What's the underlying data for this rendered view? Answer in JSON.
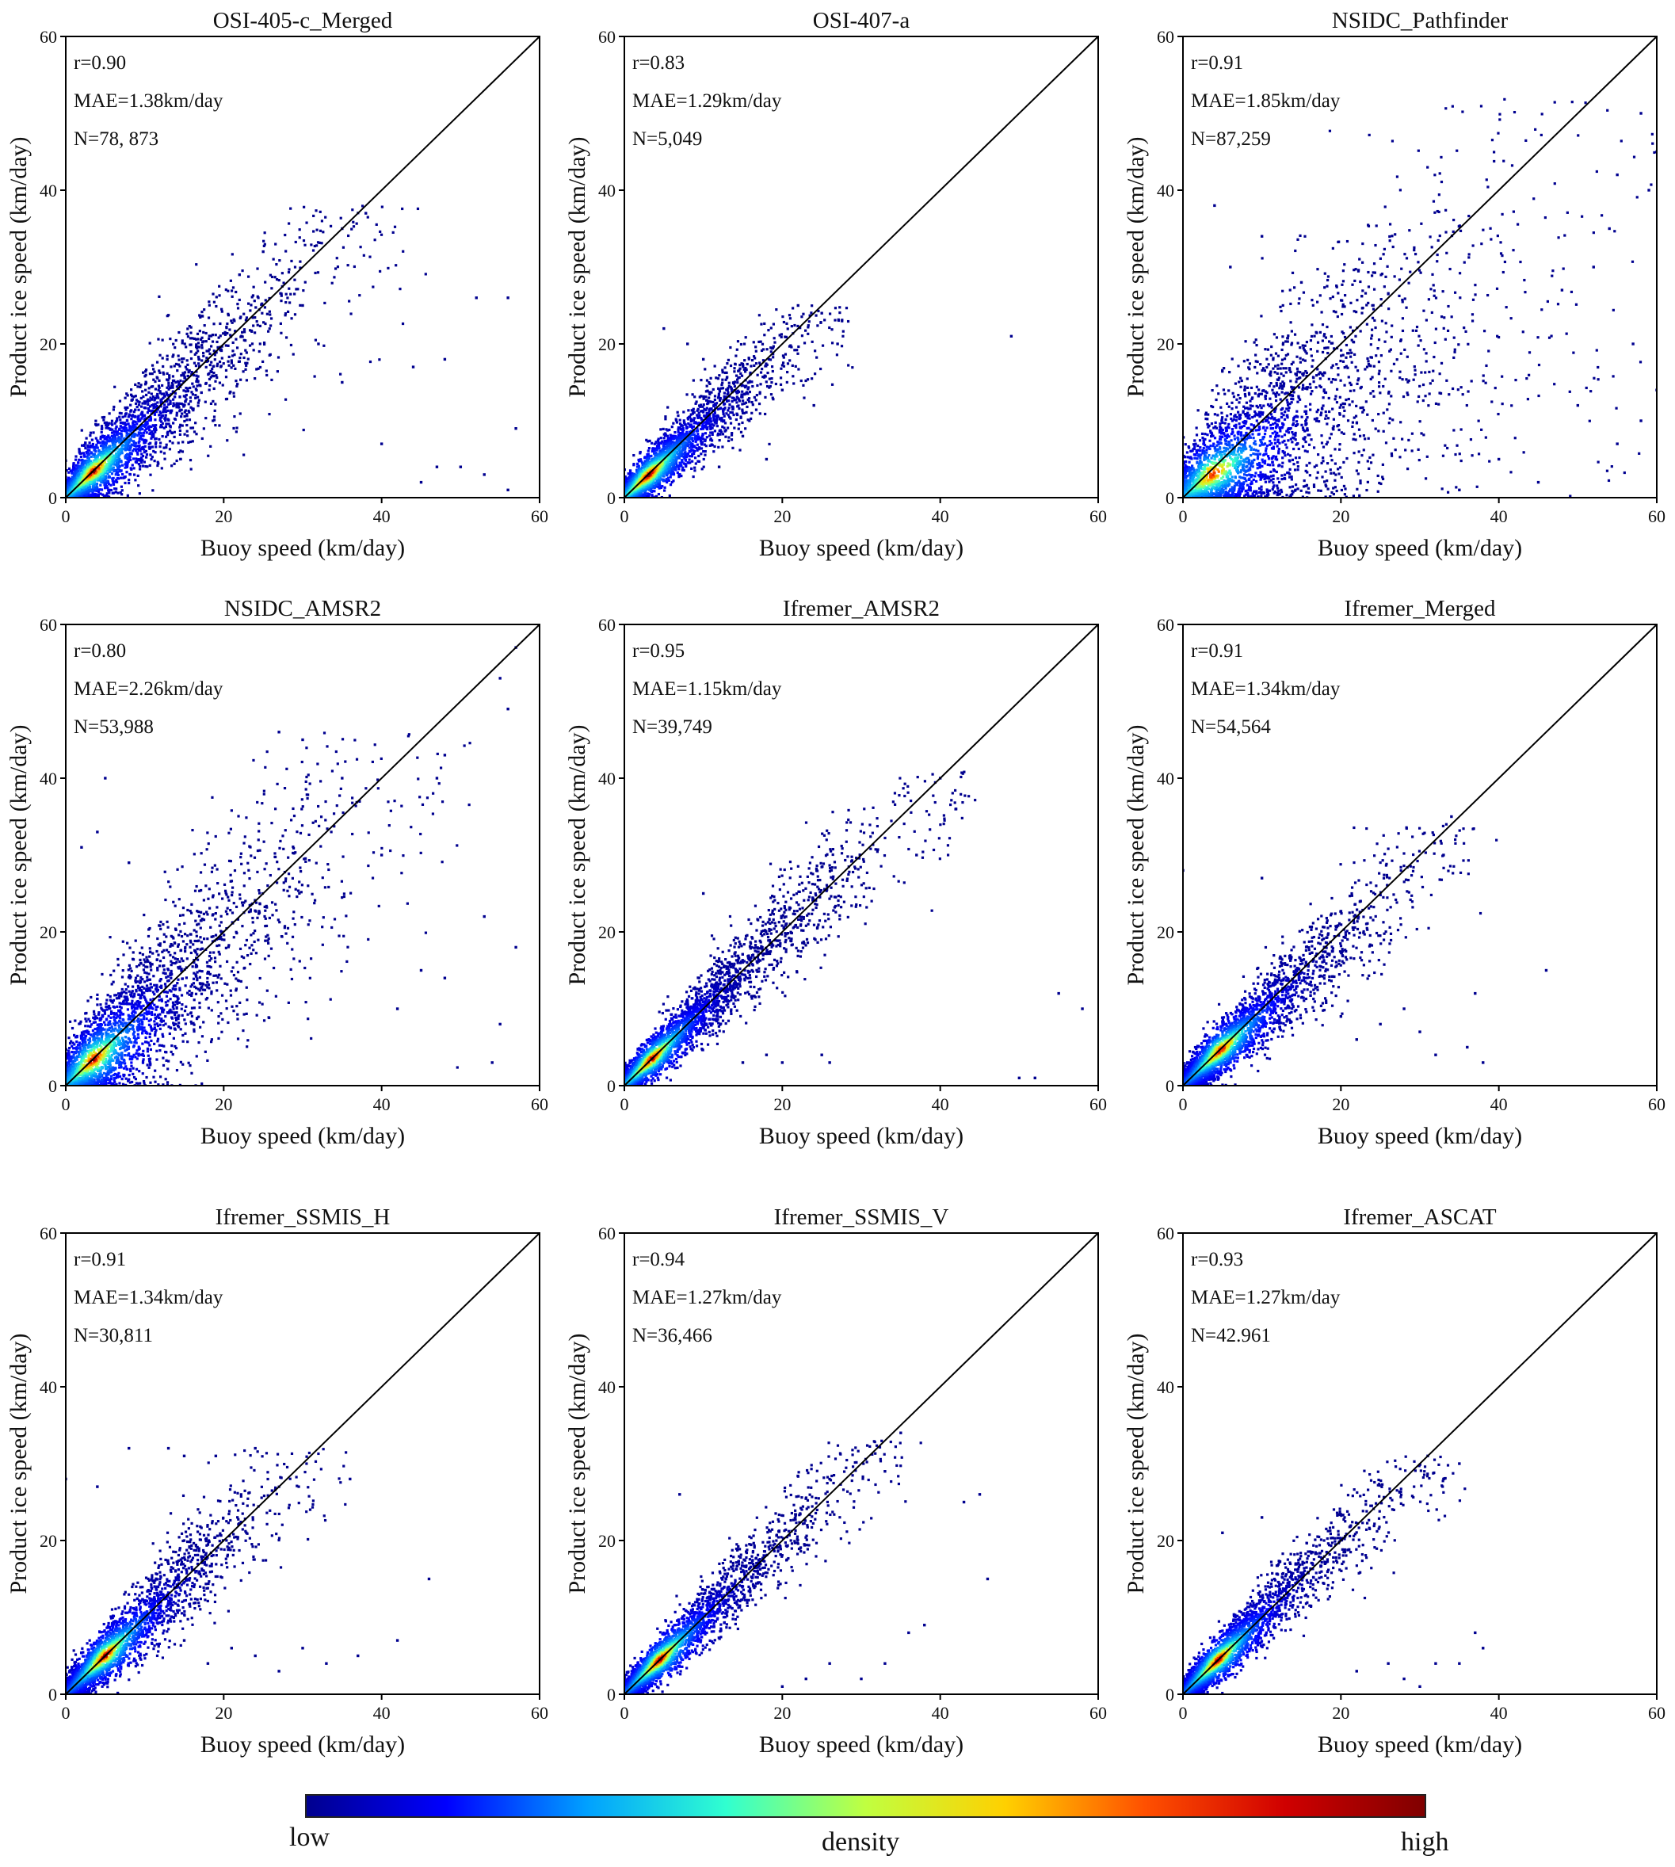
{
  "chart_data": [
    {
      "type": "scatter",
      "title": "OSI-405-c_Merged",
      "xlabel": "Buoy speed (km/day)",
      "ylabel": "Product ice speed (km/day)",
      "xlim": [
        0,
        60
      ],
      "ylim": [
        0,
        60
      ],
      "xticks": [
        0,
        20,
        40,
        60
      ],
      "yticks": [
        0,
        20,
        40,
        60
      ],
      "stats": {
        "r": "r=0.90",
        "mae": "MAE=1.38km/day",
        "n": "N=78, 873"
      },
      "density": {
        "center": [
          3.5,
          3.5
        ],
        "slope": 0.96,
        "spread": 2.6,
        "scale": 0.55,
        "max_x": 40,
        "max_y": 38
      },
      "outliers": [
        [
          52,
          26
        ],
        [
          56,
          26
        ],
        [
          57,
          9
        ],
        [
          47,
          4
        ],
        [
          50,
          4
        ],
        [
          53,
          3
        ],
        [
          56,
          1
        ],
        [
          45,
          2
        ],
        [
          40,
          7
        ],
        [
          44,
          17
        ],
        [
          48,
          18
        ],
        [
          35,
          35
        ],
        [
          38,
          37
        ],
        [
          32,
          20
        ],
        [
          30,
          25
        ],
        [
          35,
          15
        ],
        [
          25,
          32
        ],
        [
          22,
          29
        ]
      ]
    },
    {
      "type": "scatter",
      "title": "OSI-407-a",
      "xlabel": "Buoy speed (km/day)",
      "ylabel": "Product ice speed (km/day)",
      "xlim": [
        0,
        60
      ],
      "ylim": [
        0,
        60
      ],
      "xticks": [
        0,
        20,
        40,
        60
      ],
      "yticks": [
        0,
        20,
        40,
        60
      ],
      "stats": {
        "r": "r=0.83",
        "mae": "MAE=1.29km/day",
        "n": "N=5,049"
      },
      "density": {
        "center": [
          3,
          3
        ],
        "slope": 0.95,
        "spread": 2.2,
        "scale": 0.45,
        "max_x": 28,
        "max_y": 25
      },
      "outliers": [
        [
          49,
          21
        ],
        [
          25,
          24
        ],
        [
          27,
          20
        ],
        [
          22,
          25
        ],
        [
          20,
          14
        ],
        [
          15,
          8
        ],
        [
          12,
          4
        ],
        [
          8,
          20
        ],
        [
          5,
          22
        ],
        [
          10,
          18
        ],
        [
          18,
          5
        ],
        [
          24,
          12
        ]
      ]
    },
    {
      "type": "scatter",
      "title": "NSIDC_Pathfinder",
      "xlabel": "Buoy speed (km/day)",
      "ylabel": "Product ice speed (km/day)",
      "xlim": [
        0,
        60
      ],
      "ylim": [
        0,
        60
      ],
      "xticks": [
        0,
        20,
        40,
        60
      ],
      "yticks": [
        0,
        20,
        40,
        60
      ],
      "stats": {
        "r": "r=0.91",
        "mae": "MAE=1.85km/day",
        "n": "N=87,259"
      },
      "density": {
        "center": [
          3.5,
          3.5
        ],
        "slope": 0.75,
        "spread": 4.6,
        "scale": 0.6,
        "max_x": 60,
        "max_y": 52
      },
      "outliers": [
        [
          58,
          50
        ],
        [
          60,
          45
        ],
        [
          55,
          42
        ],
        [
          59,
          40
        ],
        [
          57,
          20
        ],
        [
          60,
          14
        ],
        [
          58,
          10
        ],
        [
          55,
          7
        ],
        [
          50,
          12
        ],
        [
          48,
          27
        ],
        [
          52,
          30
        ],
        [
          54,
          35
        ],
        [
          40,
          5
        ],
        [
          45,
          2
        ],
        [
          35,
          1
        ],
        [
          4,
          38
        ],
        [
          6,
          30
        ],
        [
          10,
          34
        ],
        [
          15,
          28
        ]
      ]
    },
    {
      "type": "scatter",
      "title": "NSIDC_AMSR2",
      "xlabel": "Buoy speed (km/day)",
      "ylabel": "Product ice speed (km/day)",
      "xlim": [
        0,
        60
      ],
      "ylim": [
        0,
        60
      ],
      "xticks": [
        0,
        20,
        40,
        60
      ],
      "yticks": [
        0,
        20,
        40,
        60
      ],
      "stats": {
        "r": "r=0.80",
        "mae": "MAE=2.26km/day",
        "n": "N=53,988"
      },
      "density": {
        "center": [
          3.5,
          3.5
        ],
        "slope": 0.95,
        "spread": 3.8,
        "scale": 0.55,
        "max_x": 45,
        "max_y": 46
      },
      "outliers": [
        [
          57,
          57
        ],
        [
          55,
          53
        ],
        [
          56,
          49
        ],
        [
          48,
          43
        ],
        [
          47,
          40
        ],
        [
          53,
          22
        ],
        [
          57,
          18
        ],
        [
          54,
          3
        ],
        [
          55,
          8
        ],
        [
          48,
          14
        ],
        [
          45,
          15
        ],
        [
          42,
          10
        ],
        [
          5,
          40
        ],
        [
          2,
          31
        ],
        [
          4,
          33
        ],
        [
          8,
          29
        ],
        [
          27,
          46
        ],
        [
          30,
          45
        ],
        [
          35,
          40
        ],
        [
          40,
          30
        ]
      ]
    },
    {
      "type": "scatter",
      "title": "Ifremer_AMSR2",
      "xlabel": "Buoy speed (km/day)",
      "ylabel": "Product ice speed (km/day)",
      "xlim": [
        0,
        60
      ],
      "ylim": [
        0,
        60
      ],
      "xticks": [
        0,
        20,
        40,
        60
      ],
      "yticks": [
        0,
        20,
        40,
        60
      ],
      "stats": {
        "r": "r=0.95",
        "mae": "MAE=1.15km/day",
        "n": "N=39,749"
      },
      "density": {
        "center": [
          3.5,
          3.5
        ],
        "slope": 1.0,
        "spread": 1.9,
        "scale": 0.5,
        "max_x": 42,
        "max_y": 41
      },
      "outliers": [
        [
          58,
          10
        ],
        [
          55,
          12
        ],
        [
          52,
          1
        ],
        [
          50,
          1
        ],
        [
          40,
          40
        ],
        [
          42,
          36
        ],
        [
          37,
          30
        ],
        [
          20,
          3
        ],
        [
          26,
          3
        ],
        [
          25,
          4
        ],
        [
          18,
          4
        ],
        [
          15,
          3
        ],
        [
          10,
          25
        ]
      ]
    },
    {
      "type": "scatter",
      "title": "Ifremer_Merged",
      "xlabel": "Buoy speed (km/day)",
      "ylabel": "Product ice speed (km/day)",
      "xlim": [
        0,
        60
      ],
      "ylim": [
        0,
        60
      ],
      "xticks": [
        0,
        20,
        40,
        60
      ],
      "yticks": [
        0,
        20,
        40,
        60
      ],
      "stats": {
        "r": "r=0.91",
        "mae": "MAE=1.34km/day",
        "n": "N=54,564"
      },
      "density": {
        "center": [
          4.5,
          5
        ],
        "slope": 0.95,
        "spread": 2.1,
        "scale": 0.5,
        "max_x": 35,
        "max_y": 34
      },
      "outliers": [
        [
          46,
          15
        ],
        [
          37,
          12
        ],
        [
          36,
          5
        ],
        [
          38,
          3
        ],
        [
          30,
          7
        ],
        [
          32,
          4
        ],
        [
          28,
          10
        ],
        [
          25,
          8
        ],
        [
          22,
          6
        ],
        [
          20,
          9
        ],
        [
          33,
          30
        ],
        [
          34,
          35
        ],
        [
          10,
          27
        ],
        [
          0,
          28
        ]
      ]
    },
    {
      "type": "scatter",
      "title": "Ifremer_SSMIS_H",
      "xlabel": "Buoy speed (km/day)",
      "ylabel": "Product ice speed (km/day)",
      "xlim": [
        0,
        60
      ],
      "ylim": [
        0,
        60
      ],
      "xticks": [
        0,
        20,
        40,
        60
      ],
      "yticks": [
        0,
        20,
        40,
        60
      ],
      "stats": {
        "r": "r=0.91",
        "mae": "MAE=1.34km/day",
        "n": "N=30,811"
      },
      "density": {
        "center": [
          5,
          5
        ],
        "slope": 1.0,
        "spread": 2.1,
        "scale": 0.5,
        "max_x": 33,
        "max_y": 32
      },
      "outliers": [
        [
          8,
          32
        ],
        [
          13,
          32
        ],
        [
          15,
          31
        ],
        [
          19,
          31
        ],
        [
          24,
          32
        ],
        [
          36,
          28
        ],
        [
          46,
          15
        ],
        [
          42,
          7
        ],
        [
          37,
          5
        ],
        [
          33,
          4
        ],
        [
          30,
          6
        ],
        [
          27,
          3
        ],
        [
          24,
          5
        ],
        [
          21,
          6
        ],
        [
          18,
          4
        ],
        [
          15,
          7
        ],
        [
          4,
          27
        ],
        [
          0,
          28
        ]
      ]
    },
    {
      "type": "scatter",
      "title": "Ifremer_SSMIS_V",
      "xlabel": "Buoy speed (km/day)",
      "ylabel": "Product ice speed (km/day)",
      "xlim": [
        0,
        60
      ],
      "ylim": [
        0,
        60
      ],
      "xticks": [
        0,
        20,
        40,
        60
      ],
      "yticks": [
        0,
        20,
        40,
        60
      ],
      "stats": {
        "r": "r=0.94",
        "mae": "MAE=1.27km/day",
        "n": "N=36,466"
      },
      "density": {
        "center": [
          4.5,
          4.5
        ],
        "slope": 1.0,
        "spread": 1.9,
        "scale": 0.45,
        "max_x": 35,
        "max_y": 33
      },
      "outliers": [
        [
          43,
          25
        ],
        [
          45,
          26
        ],
        [
          46,
          15
        ],
        [
          38,
          9
        ],
        [
          36,
          8
        ],
        [
          33,
          4
        ],
        [
          30,
          2
        ],
        [
          26,
          4
        ],
        [
          7,
          26
        ],
        [
          20,
          1
        ],
        [
          23,
          2
        ],
        [
          33,
          29
        ],
        [
          35,
          34
        ]
      ]
    },
    {
      "type": "scatter",
      "title": "Ifremer_ASCAT",
      "xlabel": "Buoy speed (km/day)",
      "ylabel": "Product ice speed (km/day)",
      "xlim": [
        0,
        60
      ],
      "ylim": [
        0,
        60
      ],
      "xticks": [
        0,
        20,
        40,
        60
      ],
      "yticks": [
        0,
        20,
        40,
        60
      ],
      "stats": {
        "r": "r=0.93",
        "mae": "MAE=1.27km/day",
        "n": "N=42.961"
      },
      "density": {
        "center": [
          4.5,
          4.5
        ],
        "slope": 1.0,
        "spread": 1.9,
        "scale": 0.45,
        "max_x": 32,
        "max_y": 31
      },
      "outliers": [
        [
          37,
          8
        ],
        [
          38,
          6
        ],
        [
          35,
          4
        ],
        [
          32,
          4
        ],
        [
          30,
          1
        ],
        [
          28,
          2
        ],
        [
          26,
          4
        ],
        [
          22,
          3
        ],
        [
          10,
          23
        ],
        [
          5,
          21
        ],
        [
          33,
          28
        ],
        [
          35,
          30
        ],
        [
          31,
          31
        ]
      ]
    }
  ],
  "colorbar": {
    "low_label": "low",
    "center_label": "density",
    "high_label": "high",
    "colors": [
      "#00008f",
      "#0000ff",
      "#00a0ff",
      "#30ffd0",
      "#c0ff40",
      "#ffd000",
      "#ff5000",
      "#d00000",
      "#800000"
    ]
  }
}
